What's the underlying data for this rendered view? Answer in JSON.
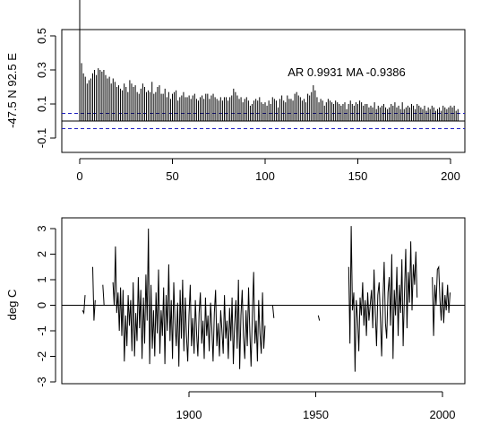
{
  "chart_data": [
    {
      "type": "bar",
      "ylabel": "-47.5 N 92.5 E",
      "annotation": "AR 0.9931  MA -0.9386",
      "xlim": [
        0,
        200
      ],
      "ylim": [
        -0.1,
        0.5
      ],
      "xticks": [
        "0",
        "50",
        "100",
        "150",
        "200"
      ],
      "yticks": [
        "-0.1",
        "0.1",
        "0.3",
        "0.5"
      ],
      "confidence_band": [
        0.045,
        -0.045
      ],
      "zero_line": 0,
      "lag_values": [
        1.0,
        0.34,
        0.28,
        0.26,
        0.22,
        0.24,
        0.25,
        0.28,
        0.3,
        0.27,
        0.31,
        0.3,
        0.29,
        0.3,
        0.27,
        0.25,
        0.26,
        0.22,
        0.25,
        0.23,
        0.2,
        0.21,
        0.19,
        0.18,
        0.22,
        0.2,
        0.17,
        0.24,
        0.22,
        0.2,
        0.21,
        0.17,
        0.16,
        0.19,
        0.22,
        0.2,
        0.17,
        0.18,
        0.17,
        0.23,
        0.16,
        0.17,
        0.2,
        0.21,
        0.16,
        0.16,
        0.19,
        0.14,
        0.17,
        0.13,
        0.16,
        0.17,
        0.18,
        0.12,
        0.14,
        0.15,
        0.17,
        0.14,
        0.14,
        0.15,
        0.13,
        0.15,
        0.16,
        0.13,
        0.12,
        0.14,
        0.15,
        0.13,
        0.16,
        0.16,
        0.13,
        0.15,
        0.16,
        0.14,
        0.13,
        0.12,
        0.14,
        0.12,
        0.14,
        0.14,
        0.12,
        0.14,
        0.15,
        0.19,
        0.17,
        0.15,
        0.13,
        0.14,
        0.11,
        0.13,
        0.14,
        0.12,
        0.09,
        0.1,
        0.12,
        0.13,
        0.12,
        0.14,
        0.11,
        0.1,
        0.11,
        0.09,
        0.12,
        0.1,
        0.14,
        0.13,
        0.12,
        0.08,
        0.13,
        0.15,
        0.12,
        0.11,
        0.15,
        0.13,
        0.13,
        0.12,
        0.16,
        0.17,
        0.15,
        0.14,
        0.12,
        0.13,
        0.11,
        0.16,
        0.15,
        0.17,
        0.21,
        0.18,
        0.14,
        0.11,
        0.13,
        0.12,
        0.09,
        0.11,
        0.13,
        0.12,
        0.11,
        0.1,
        0.12,
        0.11,
        0.1,
        0.09,
        0.1,
        0.11,
        0.07,
        0.1,
        0.12,
        0.1,
        0.09,
        0.11,
        0.1,
        0.12,
        0.11,
        0.09,
        0.1,
        0.1,
        0.08,
        0.09,
        0.08,
        0.11,
        0.07,
        0.09,
        0.08,
        0.09,
        0.1,
        0.08,
        0.07,
        0.08,
        0.1,
        0.09,
        0.11,
        0.08,
        0.09,
        0.07,
        0.11,
        0.07,
        0.08,
        0.09,
        0.08,
        0.1,
        0.09,
        0.07,
        0.1,
        0.09,
        0.08,
        0.07,
        0.09,
        0.06,
        0.08,
        0.07,
        0.09,
        0.08,
        0.06,
        0.07,
        0.08,
        0.06,
        0.09,
        0.08,
        0.07,
        0.08,
        0.09,
        0.08,
        0.09,
        0.06,
        0.07
      ]
    },
    {
      "type": "line",
      "ylabel": "deg C",
      "xlim": [
        1855,
        2005
      ],
      "ylim": [
        -3,
        3
      ],
      "xticks": [
        "1900",
        "1950",
        "2000"
      ],
      "yticks": [
        "-3",
        "-2",
        "-1",
        "0",
        "1",
        "2",
        "3"
      ],
      "zero_line": 0,
      "segments": [
        {
          "x": [
            1858,
            1858.5,
            1859
          ],
          "y": [
            -0.2,
            -0.3,
            0.4
          ]
        },
        {
          "x": [
            1862,
            1862.5,
            1863
          ],
          "y": [
            1.5,
            -0.6,
            0.2
          ]
        },
        {
          "x": [
            1866,
            1866.5
          ],
          "y": [
            0.8,
            0.0
          ]
        },
        {
          "x": [
            1870,
            1870.5,
            1871,
            1871.5,
            1872,
            1872.5,
            1873,
            1873.5,
            1874,
            1874.5,
            1875,
            1875.5,
            1876,
            1876.5,
            1877,
            1877.5,
            1878,
            1878.5,
            1879,
            1879.5,
            1880,
            1880.5,
            1881,
            1881.5,
            1882,
            1882.5,
            1883,
            1883.5,
            1884,
            1884.5,
            1885,
            1885.5,
            1886,
            1886.5,
            1887,
            1887.5,
            1888,
            1888.5,
            1889,
            1889.5,
            1890,
            1890.5,
            1891,
            1891.5,
            1892,
            1892.5,
            1893,
            1893.5,
            1894,
            1894.5,
            1895,
            1895.5,
            1896,
            1896.5,
            1897,
            1897.5,
            1898,
            1898.5,
            1899,
            1899.5,
            1900,
            1900.5,
            1901,
            1901.5,
            1902,
            1902.5,
            1903,
            1903.5,
            1904,
            1904.5,
            1905,
            1905.5,
            1906,
            1906.5,
            1907,
            1907.5,
            1908,
            1908.5,
            1909,
            1909.5,
            1910,
            1910.5,
            1911,
            1911.5,
            1912,
            1912.5,
            1913,
            1913.5,
            1914,
            1914.5,
            1915,
            1915.5,
            1916,
            1916.5,
            1917,
            1917.5,
            1918,
            1918.5,
            1919,
            1919.5,
            1920,
            1920.5,
            1921,
            1921.5,
            1922,
            1922.5,
            1923,
            1923.5,
            1924,
            1924.5,
            1925,
            1925.5,
            1926,
            1926.5,
            1927,
            1927.5,
            1928,
            1928.5,
            1929,
            1929.5,
            1930
          ],
          "y": [
            0.9,
            0.0,
            2.3,
            -0.3,
            0.5,
            -1.0,
            0.7,
            -1.2,
            0.6,
            -2.2,
            -0.4,
            -1.6,
            0.4,
            -0.8,
            0.2,
            -1.8,
            0.9,
            -2.0,
            -0.3,
            -1.4,
            1.1,
            -0.9,
            0.6,
            -2.1,
            0.3,
            -1.5,
            1.2,
            -0.6,
            3.0,
            -2.3,
            0.8,
            -1.7,
            -0.2,
            -2.0,
            0.5,
            -1.1,
            1.4,
            -1.9,
            -0.2,
            -1.2,
            0.7,
            -2.3,
            0.4,
            -1.0,
            1.6,
            -1.4,
            0.2,
            -2.1,
            0.9,
            -0.7,
            -1.6,
            0.1,
            -2.4,
            0.6,
            -1.3,
            1.0,
            -1.8,
            0.3,
            -1.2,
            -2.2,
            -0.4,
            0.8,
            -1.6,
            -0.5,
            -1.9,
            0.2,
            -1.1,
            -2.0,
            -0.3,
            0.5,
            -1.5,
            -0.6,
            -2.1,
            0.3,
            -1.2,
            -0.4,
            -1.8,
            0.1,
            -0.9,
            -2.2,
            -0.3,
            0.6,
            -1.6,
            -0.7,
            -2.0,
            -0.2,
            -1.0,
            -1.9,
            0.4,
            -1.3,
            -0.6,
            -2.1,
            -0.1,
            -1.4,
            0.3,
            -2.3,
            -0.8,
            0.2,
            -1.7,
            1.0,
            -2.5,
            -0.4,
            0.6,
            -1.2,
            -2.1,
            -0.2,
            -1.6,
            0.7,
            -1.0,
            -2.4,
            -0.3,
            1.3,
            -1.5,
            -0.6,
            -2.2,
            0.2,
            -1.1,
            -1.9,
            0.5,
            -1.7,
            -0.8
          ]
        },
        {
          "x": [
            1933,
            1933.5
          ],
          "y": [
            0.0,
            -0.5
          ]
        },
        {
          "x": [
            1951,
            1951.5
          ],
          "y": [
            -0.4,
            -0.6
          ]
        },
        {
          "x": [
            1963,
            1963.5,
            1964,
            1964.5,
            1965,
            1965.5,
            1966,
            1966.5,
            1967,
            1967.5,
            1968,
            1968.5,
            1969,
            1969.5,
            1970,
            1970.5,
            1971,
            1971.5,
            1972,
            1972.5,
            1973,
            1973.5,
            1974,
            1974.5,
            1975,
            1975.5,
            1976,
            1976.5,
            1977,
            1977.5,
            1978,
            1978.5,
            1979,
            1979.5,
            1980,
            1980.5,
            1981,
            1981.5,
            1982,
            1982.5,
            1983,
            1983.5,
            1984,
            1984.5,
            1985,
            1985.5,
            1986,
            1986.5,
            1987,
            1987.5,
            1988,
            1988.5,
            1989,
            1989.5,
            1990
          ],
          "y": [
            1.5,
            -1.5,
            3.1,
            -0.2,
            0.5,
            -2.6,
            0.2,
            -0.5,
            -1.8,
            0.3,
            -0.4,
            0.9,
            -0.8,
            0.2,
            -1.2,
            0.5,
            -0.6,
            0.0,
            0.6,
            -0.9,
            1.4,
            -0.3,
            -1.6,
            0.4,
            0.9,
            -0.5,
            -2.0,
            0.2,
            1.7,
            -0.7,
            -1.3,
            0.5,
            1.1,
            -0.8,
            2.0,
            -2.1,
            0.6,
            -0.4,
            1.5,
            -1.2,
            0.8,
            -0.3,
            1.8,
            -1.6,
            0.4,
            2.2,
            -0.9,
            1.3,
            0.1,
            2.5,
            -0.2,
            1.6,
            0.8,
            2.1,
            0.3
          ]
        },
        {
          "x": [
            1996,
            1996.5,
            1997,
            1997.5,
            1998,
            1998.5,
            1999,
            1999.5,
            2000,
            2000.5,
            2001,
            2001.5,
            2002,
            2002.5,
            2003
          ],
          "y": [
            1.1,
            -1.2,
            0.8,
            0.0,
            1.4,
            1.5,
            0.2,
            -0.6,
            0.9,
            -0.7,
            0.4,
            -0.2,
            0.8,
            -0.3,
            0.5
          ]
        }
      ]
    }
  ]
}
